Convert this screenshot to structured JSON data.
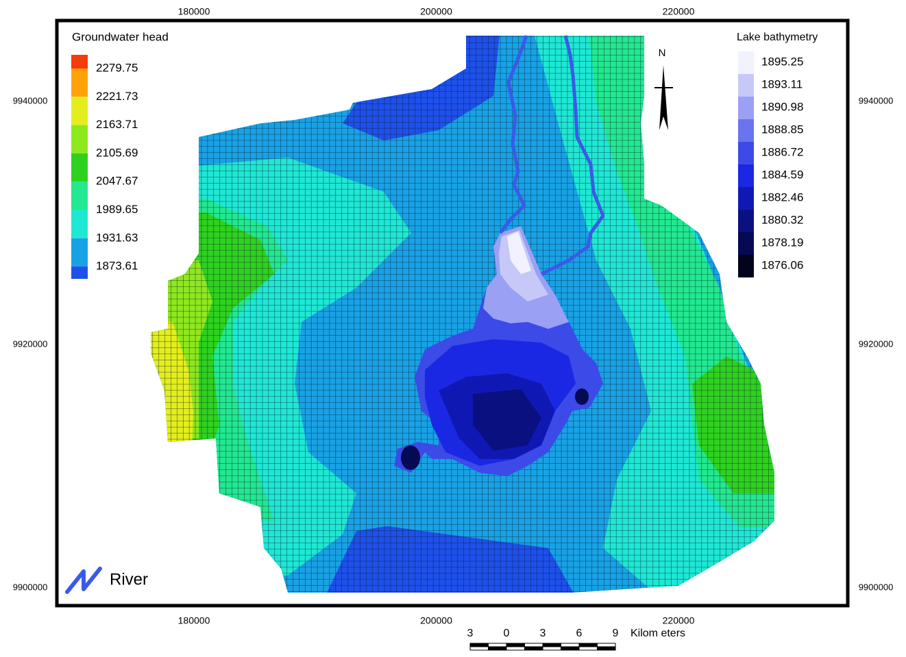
{
  "axes": {
    "x_ticks": [
      180000,
      200000,
      220000
    ],
    "y_ticks": [
      9940000,
      9920000,
      9900000
    ]
  },
  "legends": {
    "groundwater": {
      "title": "Groundwater head",
      "labels": [
        "2279.75",
        "2221.73",
        "2163.71",
        "2105.69",
        "2047.67",
        "1989.65",
        "1931.63",
        "1873.61"
      ],
      "colors": [
        "#f43c0c",
        "#ffa20a",
        "#e4ee1e",
        "#8ee81e",
        "#2ed21e",
        "#22e890",
        "#1ee8d4",
        "#18a2e6",
        "#1e50ea"
      ]
    },
    "lake": {
      "title": "Lake bathymetry",
      "labels": [
        "1895.25",
        "1893.11",
        "1890.98",
        "1888.85",
        "1886.72",
        "1884.59",
        "1882.46",
        "1880.32",
        "1878.19",
        "1876.06"
      ],
      "colors": [
        "#f2f2fe",
        "#c6c8f8",
        "#9aa0f4",
        "#6a74ee",
        "#3c4ae8",
        "#1a28e4",
        "#1018b4",
        "#0a1080",
        "#060a52",
        "#02041e"
      ]
    },
    "river": {
      "label": "River",
      "color": "#3a5ae8"
    }
  },
  "north": {
    "label": "N"
  },
  "scale_bar": {
    "labels": [
      "3",
      "0",
      "3",
      "6",
      "9"
    ],
    "unit": "Kilom eters"
  }
}
